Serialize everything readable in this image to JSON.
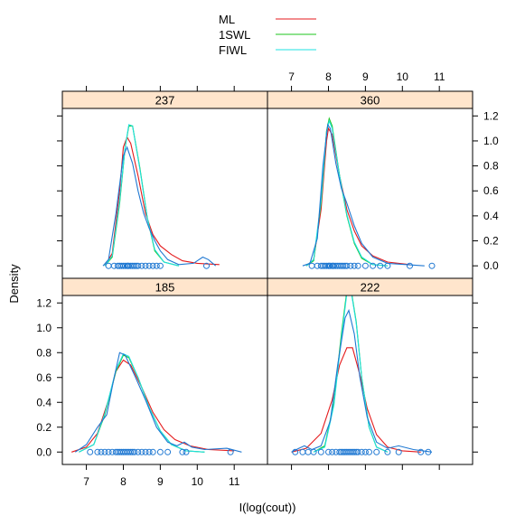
{
  "chart_data": {
    "type": "line",
    "xlabel": "I(log(cout))",
    "ylabel": "Density",
    "xlim": [
      6.35,
      11.9
    ],
    "ylim": [
      -0.1,
      1.26
    ],
    "x_ticks": [
      7,
      8,
      9,
      10,
      11
    ],
    "y_ticks": [
      0.0,
      0.2,
      0.4,
      0.6,
      0.8,
      1.0,
      1.2
    ],
    "y_tick_labels": [
      "0.0",
      "0.2",
      "0.4",
      "0.6",
      "0.8",
      "1.0",
      "1.2"
    ],
    "legend": [
      {
        "name": "ML",
        "color": "#e41a1c"
      },
      {
        "name": "1SWL",
        "color": "#1ec41e"
      },
      {
        "name": "FIWL",
        "color": "#1ee0e0"
      }
    ],
    "data_curve_color": "#1f78d2",
    "panels": [
      {
        "label": "237",
        "ml": [
          [
            7.5,
            0.0
          ],
          [
            7.7,
            0.1
          ],
          [
            7.9,
            0.6
          ],
          [
            8.0,
            0.95
          ],
          [
            8.1,
            1.03
          ],
          [
            8.2,
            0.98
          ],
          [
            8.4,
            0.72
          ],
          [
            8.6,
            0.42
          ],
          [
            8.8,
            0.25
          ],
          [
            9.0,
            0.16
          ],
          [
            9.3,
            0.09
          ],
          [
            9.6,
            0.04
          ],
          [
            10.0,
            0.02
          ],
          [
            10.6,
            0.01
          ]
        ],
        "swl": [
          [
            7.5,
            0.0
          ],
          [
            7.7,
            0.07
          ],
          [
            7.9,
            0.5
          ],
          [
            8.05,
            0.95
          ],
          [
            8.15,
            1.12
          ],
          [
            8.25,
            1.12
          ],
          [
            8.45,
            0.78
          ],
          [
            8.65,
            0.38
          ],
          [
            8.85,
            0.12
          ],
          [
            9.1,
            0.03
          ],
          [
            9.5,
            0.0
          ]
        ],
        "fiwl": [
          [
            7.5,
            0.0
          ],
          [
            7.7,
            0.08
          ],
          [
            7.9,
            0.52
          ],
          [
            8.05,
            0.95
          ],
          [
            8.15,
            1.13
          ],
          [
            8.25,
            1.12
          ],
          [
            8.45,
            0.77
          ],
          [
            8.65,
            0.38
          ],
          [
            8.85,
            0.13
          ],
          [
            9.1,
            0.03
          ],
          [
            9.5,
            0.0
          ]
        ],
        "kde": [
          [
            7.45,
            0.0
          ],
          [
            7.6,
            0.05
          ],
          [
            7.8,
            0.42
          ],
          [
            8.0,
            0.88
          ],
          [
            8.1,
            0.95
          ],
          [
            8.25,
            0.82
          ],
          [
            8.4,
            0.6
          ],
          [
            8.55,
            0.42
          ],
          [
            8.7,
            0.3
          ],
          [
            8.85,
            0.2
          ],
          [
            9.0,
            0.12
          ],
          [
            9.2,
            0.05
          ],
          [
            9.5,
            0.01
          ],
          [
            9.9,
            0.02
          ],
          [
            10.15,
            0.07
          ],
          [
            10.3,
            0.05
          ],
          [
            10.5,
            0.0
          ]
        ],
        "points": [
          7.6,
          7.75,
          7.85,
          7.9,
          7.95,
          8.0,
          8.05,
          8.1,
          8.12,
          8.15,
          8.2,
          8.25,
          8.3,
          8.35,
          8.4,
          8.5,
          8.6,
          8.7,
          8.8,
          8.9,
          9.0,
          10.25
        ]
      },
      {
        "label": "360",
        "ml": [
          [
            7.4,
            0.0
          ],
          [
            7.6,
            0.05
          ],
          [
            7.8,
            0.45
          ],
          [
            7.95,
            1.0
          ],
          [
            8.0,
            1.1
          ],
          [
            8.1,
            1.05
          ],
          [
            8.3,
            0.72
          ],
          [
            8.5,
            0.45
          ],
          [
            8.7,
            0.28
          ],
          [
            8.9,
            0.16
          ],
          [
            9.2,
            0.08
          ],
          [
            9.6,
            0.03
          ],
          [
            10.2,
            0.01
          ]
        ],
        "swl": [
          [
            7.4,
            0.0
          ],
          [
            7.6,
            0.04
          ],
          [
            7.8,
            0.5
          ],
          [
            7.95,
            1.08
          ],
          [
            8.02,
            1.18
          ],
          [
            8.1,
            1.12
          ],
          [
            8.3,
            0.72
          ],
          [
            8.5,
            0.4
          ],
          [
            8.7,
            0.18
          ],
          [
            8.9,
            0.06
          ],
          [
            9.2,
            0.01
          ],
          [
            9.6,
            0.0
          ]
        ],
        "fiwl": [
          [
            7.4,
            0.0
          ],
          [
            7.6,
            0.05
          ],
          [
            7.8,
            0.52
          ],
          [
            7.95,
            1.07
          ],
          [
            8.02,
            1.16
          ],
          [
            8.1,
            1.1
          ],
          [
            8.3,
            0.72
          ],
          [
            8.5,
            0.41
          ],
          [
            8.7,
            0.19
          ],
          [
            8.9,
            0.07
          ],
          [
            9.2,
            0.01
          ],
          [
            9.6,
            0.0
          ]
        ],
        "kde": [
          [
            7.3,
            0.0
          ],
          [
            7.5,
            0.02
          ],
          [
            7.7,
            0.22
          ],
          [
            7.85,
            0.8
          ],
          [
            7.98,
            1.13
          ],
          [
            8.05,
            1.1
          ],
          [
            8.2,
            0.82
          ],
          [
            8.35,
            0.62
          ],
          [
            8.5,
            0.5
          ],
          [
            8.7,
            0.32
          ],
          [
            8.9,
            0.18
          ],
          [
            9.2,
            0.07
          ],
          [
            9.6,
            0.02
          ],
          [
            10.1,
            0.01
          ],
          [
            10.6,
            0.0
          ]
        ],
        "points": [
          7.55,
          7.7,
          7.8,
          7.85,
          7.9,
          7.95,
          8.0,
          8.02,
          8.05,
          8.1,
          8.12,
          8.15,
          8.2,
          8.25,
          8.3,
          8.35,
          8.4,
          8.45,
          8.5,
          8.6,
          8.7,
          8.8,
          9.0,
          9.2,
          9.4,
          9.6,
          10.2,
          10.8
        ]
      },
      {
        "label": "185",
        "ml": [
          [
            6.6,
            0.0
          ],
          [
            7.0,
            0.04
          ],
          [
            7.3,
            0.15
          ],
          [
            7.6,
            0.42
          ],
          [
            7.8,
            0.65
          ],
          [
            8.0,
            0.74
          ],
          [
            8.2,
            0.7
          ],
          [
            8.5,
            0.52
          ],
          [
            8.8,
            0.32
          ],
          [
            9.1,
            0.18
          ],
          [
            9.4,
            0.1
          ],
          [
            9.8,
            0.05
          ],
          [
            10.3,
            0.02
          ],
          [
            11.0,
            0.01
          ]
        ],
        "swl": [
          [
            6.8,
            0.0
          ],
          [
            7.2,
            0.06
          ],
          [
            7.5,
            0.3
          ],
          [
            7.8,
            0.65
          ],
          [
            8.0,
            0.78
          ],
          [
            8.15,
            0.76
          ],
          [
            8.4,
            0.6
          ],
          [
            8.7,
            0.36
          ],
          [
            9.0,
            0.17
          ],
          [
            9.3,
            0.06
          ],
          [
            9.7,
            0.01
          ],
          [
            10.2,
            0.0
          ]
        ],
        "fiwl": [
          [
            6.8,
            0.0
          ],
          [
            7.2,
            0.06
          ],
          [
            7.5,
            0.31
          ],
          [
            7.8,
            0.66
          ],
          [
            8.0,
            0.79
          ],
          [
            8.15,
            0.77
          ],
          [
            8.4,
            0.6
          ],
          [
            8.7,
            0.36
          ],
          [
            9.0,
            0.17
          ],
          [
            9.3,
            0.06
          ],
          [
            9.7,
            0.01
          ],
          [
            10.2,
            0.0
          ]
        ],
        "kde": [
          [
            6.7,
            0.0
          ],
          [
            7.0,
            0.06
          ],
          [
            7.3,
            0.2
          ],
          [
            7.55,
            0.3
          ],
          [
            7.75,
            0.6
          ],
          [
            7.9,
            0.8
          ],
          [
            8.05,
            0.78
          ],
          [
            8.3,
            0.62
          ],
          [
            8.6,
            0.42
          ],
          [
            8.9,
            0.2
          ],
          [
            9.2,
            0.08
          ],
          [
            9.45,
            0.05
          ],
          [
            9.65,
            0.08
          ],
          [
            9.85,
            0.04
          ],
          [
            10.2,
            0.02
          ],
          [
            10.8,
            0.03
          ],
          [
            11.2,
            0.0
          ]
        ],
        "points": [
          7.1,
          7.3,
          7.4,
          7.5,
          7.6,
          7.7,
          7.8,
          7.85,
          7.9,
          7.95,
          8.0,
          8.05,
          8.1,
          8.15,
          8.2,
          8.25,
          8.3,
          8.4,
          8.5,
          8.6,
          8.7,
          8.8,
          9.0,
          9.2,
          9.6,
          9.7,
          10.9
        ]
      },
      {
        "label": "222",
        "ml": [
          [
            7.0,
            0.0
          ],
          [
            7.4,
            0.03
          ],
          [
            7.8,
            0.15
          ],
          [
            8.1,
            0.42
          ],
          [
            8.3,
            0.7
          ],
          [
            8.5,
            0.84
          ],
          [
            8.65,
            0.84
          ],
          [
            8.85,
            0.62
          ],
          [
            9.05,
            0.35
          ],
          [
            9.3,
            0.14
          ],
          [
            9.6,
            0.04
          ],
          [
            10.0,
            0.01
          ],
          [
            10.5,
            0.0
          ]
        ],
        "swl": [
          [
            7.6,
            0.0
          ],
          [
            7.9,
            0.05
          ],
          [
            8.15,
            0.4
          ],
          [
            8.35,
            0.95
          ],
          [
            8.5,
            1.3
          ],
          [
            8.6,
            1.33
          ],
          [
            8.75,
            1.05
          ],
          [
            8.9,
            0.6
          ],
          [
            9.1,
            0.2
          ],
          [
            9.3,
            0.04
          ],
          [
            9.6,
            0.0
          ]
        ],
        "fiwl": [
          [
            7.6,
            0.0
          ],
          [
            7.9,
            0.04
          ],
          [
            8.15,
            0.38
          ],
          [
            8.35,
            0.92
          ],
          [
            8.5,
            1.28
          ],
          [
            8.6,
            1.32
          ],
          [
            8.75,
            1.04
          ],
          [
            8.9,
            0.6
          ],
          [
            9.1,
            0.2
          ],
          [
            9.3,
            0.04
          ],
          [
            9.6,
            0.0
          ]
        ],
        "kde": [
          [
            7.0,
            0.0
          ],
          [
            7.2,
            0.03
          ],
          [
            7.35,
            0.05
          ],
          [
            7.55,
            0.02
          ],
          [
            7.8,
            0.05
          ],
          [
            8.05,
            0.25
          ],
          [
            8.25,
            0.7
          ],
          [
            8.45,
            1.08
          ],
          [
            8.55,
            1.14
          ],
          [
            8.7,
            0.95
          ],
          [
            8.85,
            0.6
          ],
          [
            9.05,
            0.28
          ],
          [
            9.3,
            0.08
          ],
          [
            9.6,
            0.03
          ],
          [
            9.9,
            0.05
          ],
          [
            10.3,
            0.02
          ],
          [
            10.8,
            0.0
          ]
        ],
        "points": [
          7.1,
          7.3,
          7.45,
          7.6,
          7.8,
          8.0,
          8.1,
          8.2,
          8.3,
          8.35,
          8.4,
          8.45,
          8.5,
          8.55,
          8.6,
          8.65,
          8.7,
          8.75,
          8.8,
          8.9,
          9.0,
          9.1,
          9.3,
          9.6,
          9.9,
          10.5,
          10.7
        ]
      }
    ]
  }
}
